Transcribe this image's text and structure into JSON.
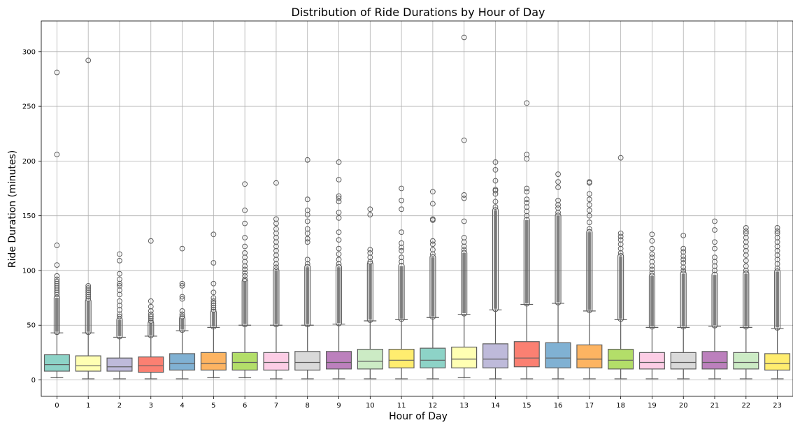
{
  "chart_data": {
    "type": "box",
    "title": "Distribution of Ride Durations by Hour of Day",
    "xlabel": "Hour of Day",
    "ylabel": "Ride Duration (minutes)",
    "ylim": [
      -15,
      328
    ],
    "yticks": [
      0,
      50,
      100,
      150,
      200,
      250,
      300
    ],
    "grid": true,
    "categories": [
      "0",
      "1",
      "2",
      "3",
      "4",
      "5",
      "6",
      "7",
      "8",
      "9",
      "10",
      "11",
      "12",
      "13",
      "14",
      "15",
      "16",
      "17",
      "18",
      "19",
      "20",
      "21",
      "22",
      "23"
    ],
    "colors": [
      "#8dd3c7",
      "#ffffb3",
      "#bebada",
      "#fb8072",
      "#80b1d3",
      "#fdb462",
      "#b3de69",
      "#fccde5",
      "#d9d9d9",
      "#bc80bd",
      "#ccebc5",
      "#ffed6f",
      "#8dd3c7",
      "#ffffb3",
      "#bebada",
      "#fb8072",
      "#80b1d3",
      "#fdb462",
      "#b3de69",
      "#fccde5",
      "#d9d9d9",
      "#bc80bd",
      "#ccebc5",
      "#ffed6f"
    ],
    "boxes": [
      {
        "whislo": 2,
        "q1": 8,
        "med": 14,
        "q3": 23,
        "whishi": 43,
        "flier_min": 44,
        "flier_dense_max": 75,
        "fliers": [
          78,
          80,
          82,
          84,
          86,
          88,
          90,
          92,
          95,
          105,
          123,
          206,
          281
        ]
      },
      {
        "whislo": 1,
        "q1": 8,
        "med": 13,
        "q3": 22,
        "whishi": 43,
        "flier_min": 44,
        "flier_dense_max": 72,
        "fliers": [
          74,
          76,
          78,
          80,
          82,
          84,
          86,
          292
        ]
      },
      {
        "whislo": 1,
        "q1": 8,
        "med": 12,
        "q3": 20,
        "whishi": 39,
        "flier_min": 40,
        "flier_dense_max": 55,
        "fliers": [
          58,
          60,
          64,
          68,
          72,
          78,
          82,
          86,
          88,
          92,
          97,
          109,
          115
        ]
      },
      {
        "whislo": 1,
        "q1": 7,
        "med": 13,
        "q3": 21,
        "whishi": 40,
        "flier_min": 41,
        "flier_dense_max": 52,
        "fliers": [
          54,
          56,
          58,
          60,
          63,
          67,
          72,
          127
        ]
      },
      {
        "whislo": 1,
        "q1": 9,
        "med": 15,
        "q3": 24,
        "whishi": 45,
        "flier_min": 46,
        "flier_dense_max": 56,
        "fliers": [
          58,
          60,
          63,
          74,
          76,
          86,
          88,
          120
        ]
      },
      {
        "whislo": 2,
        "q1": 9,
        "med": 15,
        "q3": 25,
        "whishi": 48,
        "flier_min": 49,
        "flier_dense_max": 62,
        "fliers": [
          64,
          66,
          68,
          70,
          72,
          75,
          80,
          88,
          107,
          133
        ]
      },
      {
        "whislo": 2,
        "q1": 9,
        "med": 16,
        "q3": 25,
        "whishi": 50,
        "flier_min": 51,
        "flier_dense_max": 90,
        "fliers": [
          92,
          95,
          98,
          101,
          104,
          108,
          112,
          116,
          122,
          130,
          143,
          155,
          179
        ]
      },
      {
        "whislo": 1,
        "q1": 9,
        "med": 16,
        "q3": 25,
        "whishi": 50,
        "flier_min": 51,
        "flier_dense_max": 100,
        "fliers": [
          103,
          106,
          110,
          114,
          118,
          122,
          126,
          130,
          134,
          138,
          143,
          147,
          180
        ]
      },
      {
        "whislo": 1,
        "q1": 9,
        "med": 16,
        "q3": 26,
        "whishi": 50,
        "flier_min": 51,
        "flier_dense_max": 103,
        "fliers": [
          106,
          110,
          126,
          129,
          134,
          138,
          145,
          151,
          155,
          165,
          201
        ]
      },
      {
        "whislo": 1,
        "q1": 10,
        "med": 16,
        "q3": 26,
        "whishi": 51,
        "flier_min": 52,
        "flier_dense_max": 103,
        "fliers": [
          106,
          110,
          115,
          120,
          128,
          135,
          148,
          153,
          163,
          166,
          168,
          183,
          199
        ]
      },
      {
        "whislo": 1,
        "q1": 10,
        "med": 17,
        "q3": 28,
        "whishi": 54,
        "flier_min": 55,
        "flier_dense_max": 106,
        "fliers": [
          108,
          112,
          116,
          119,
          151,
          156
        ]
      },
      {
        "whislo": 1,
        "q1": 11,
        "med": 18,
        "q3": 28,
        "whishi": 55,
        "flier_min": 56,
        "flier_dense_max": 104,
        "fliers": [
          108,
          112,
          118,
          121,
          125,
          135,
          156,
          164,
          175
        ]
      },
      {
        "whislo": 1,
        "q1": 11,
        "med": 18,
        "q3": 29,
        "whishi": 57,
        "flier_min": 58,
        "flier_dense_max": 112,
        "fliers": [
          115,
          119,
          124,
          127,
          146,
          147,
          161,
          172
        ]
      },
      {
        "whislo": 2,
        "q1": 11,
        "med": 19,
        "q3": 30,
        "whishi": 60,
        "flier_min": 61,
        "flier_dense_max": 116,
        "fliers": [
          119,
          122,
          126,
          130,
          145,
          166,
          169,
          219,
          313
        ]
      },
      {
        "whislo": 1,
        "q1": 11,
        "med": 19,
        "q3": 33,
        "whishi": 64,
        "flier_min": 65,
        "flier_dense_max": 155,
        "fliers": [
          158,
          163,
          170,
          173,
          174,
          182,
          192,
          199
        ]
      },
      {
        "whislo": 1,
        "q1": 12,
        "med": 20,
        "q3": 35,
        "whishi": 69,
        "flier_min": 70,
        "flier_dense_max": 146,
        "fliers": [
          150,
          154,
          158,
          162,
          165,
          172,
          175,
          202,
          206,
          253
        ]
      },
      {
        "whislo": 1,
        "q1": 11,
        "med": 20,
        "q3": 34,
        "whishi": 70,
        "flier_min": 71,
        "flier_dense_max": 150,
        "fliers": [
          153,
          157,
          160,
          164,
          176,
          181,
          188
        ]
      },
      {
        "whislo": 1,
        "q1": 11,
        "med": 19,
        "q3": 32,
        "whishi": 63,
        "flier_min": 64,
        "flier_dense_max": 135,
        "fliers": [
          138,
          144,
          150,
          155,
          160,
          165,
          170,
          180,
          181
        ]
      },
      {
        "whislo": 1,
        "q1": 10,
        "med": 18,
        "q3": 28,
        "whishi": 55,
        "flier_min": 56,
        "flier_dense_max": 113,
        "fliers": [
          116,
          120,
          124,
          128,
          131,
          134,
          203
        ]
      },
      {
        "whislo": 1,
        "q1": 10,
        "med": 16,
        "q3": 25,
        "whishi": 48,
        "flier_min": 49,
        "flier_dense_max": 95,
        "fliers": [
          98,
          101,
          104,
          108,
          112,
          115,
          120,
          127,
          133
        ]
      },
      {
        "whislo": 1,
        "q1": 10,
        "med": 16,
        "q3": 25,
        "whishi": 48,
        "flier_min": 49,
        "flier_dense_max": 97,
        "fliers": [
          100,
          103,
          107,
          110,
          113,
          117,
          120,
          132
        ]
      },
      {
        "whislo": 1,
        "q1": 10,
        "med": 16,
        "q3": 26,
        "whishi": 49,
        "flier_min": 50,
        "flier_dense_max": 96,
        "fliers": [
          100,
          104,
          108,
          112,
          120,
          126,
          137,
          145
        ]
      },
      {
        "whislo": 1,
        "q1": 10,
        "med": 16,
        "q3": 25,
        "whishi": 48,
        "flier_min": 49,
        "flier_dense_max": 97,
        "fliers": [
          100,
          104,
          109,
          114,
          118,
          122,
          126,
          130,
          134,
          136,
          139
        ]
      },
      {
        "whislo": 1,
        "q1": 9,
        "med": 15,
        "q3": 24,
        "whishi": 47,
        "flier_min": 48,
        "flier_dense_max": 99,
        "fliers": [
          102,
          106,
          110,
          114,
          118,
          122,
          126,
          130,
          134,
          136,
          139
        ]
      }
    ]
  }
}
